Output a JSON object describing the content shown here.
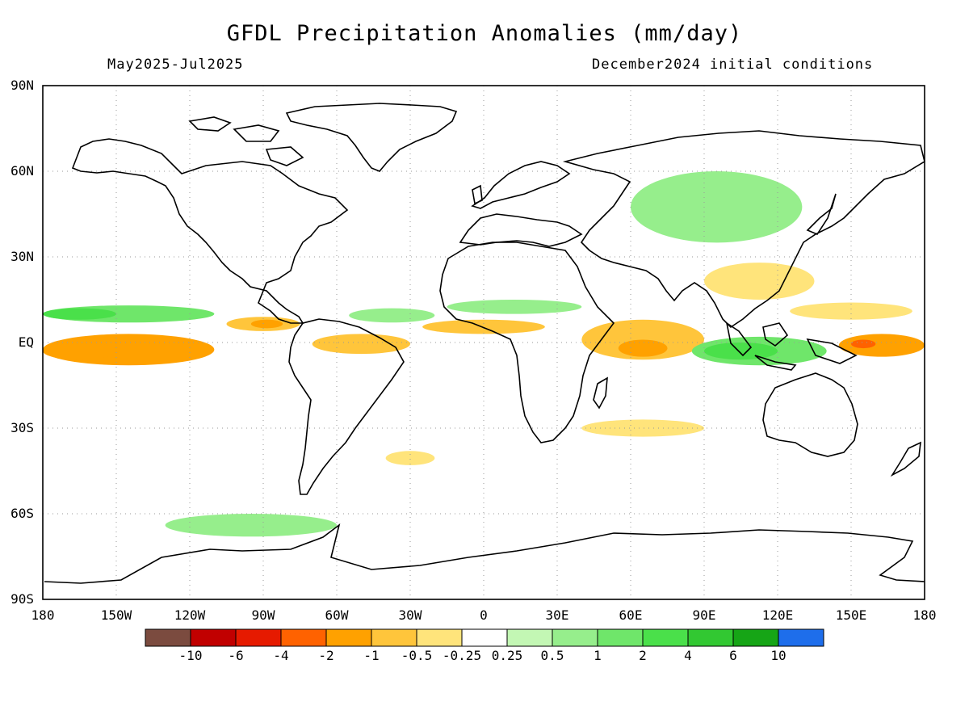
{
  "header": {
    "title": "GFDL Precipitation Anomalies (mm/day)",
    "period": "May2025-Jul2025",
    "init": "December2024 initial conditions"
  },
  "axes": {
    "lat_labels": [
      "90N",
      "60N",
      "30N",
      "EQ",
      "30S",
      "60S",
      "90S"
    ],
    "lon_labels": [
      "180",
      "150W",
      "120W",
      "90W",
      "60W",
      "30W",
      "0",
      "30E",
      "60E",
      "90E",
      "120E",
      "150E",
      "180"
    ]
  },
  "colorbar": {
    "colors": [
      "#7b4b3f",
      "#c10000",
      "#e61a00",
      "#ff6200",
      "#ffa100",
      "#ffc53b",
      "#ffe47b",
      "#ffffff",
      "#c3f7b4",
      "#96ee8c",
      "#6fe66a",
      "#4ae04a",
      "#32c832",
      "#16a516",
      "#1e6eeb"
    ],
    "labels": [
      "-10",
      "-6",
      "-4",
      "-2",
      "-1",
      "-0.5",
      "-0.25",
      "0.25",
      "0.5",
      "1",
      "2",
      "4",
      "6",
      "10"
    ]
  },
  "chart_data": {
    "type": "heatmap",
    "title": "GFDL Precipitation Anomalies (mm/day)",
    "subtitle_left": "May2025-Jul2025",
    "subtitle_right": "December2024 initial conditions",
    "xlim": [
      -180,
      180
    ],
    "ylim": [
      -90,
      90
    ],
    "grid": true,
    "units": "mm/day",
    "anomaly_regions": [
      {
        "lon": [
          -180,
          -110
        ],
        "lat": [
          -8,
          3
        ],
        "value": -1.5
      },
      {
        "lon": [
          -180,
          -150
        ],
        "lat": [
          -6,
          0
        ],
        "value": -2
      },
      {
        "lon": [
          -180,
          -110
        ],
        "lat": [
          7,
          13
        ],
        "value": 1
      },
      {
        "lon": [
          -180,
          -150
        ],
        "lat": [
          8,
          12
        ],
        "value": 2
      },
      {
        "lon": [
          -105,
          -75
        ],
        "lat": [
          4,
          9
        ],
        "value": -1
      },
      {
        "lon": [
          -95,
          -82
        ],
        "lat": [
          5,
          8
        ],
        "value": -2
      },
      {
        "lon": [
          -70,
          -30
        ],
        "lat": [
          -4,
          3
        ],
        "value": -1
      },
      {
        "lon": [
          -55,
          -20
        ],
        "lat": [
          7,
          12
        ],
        "value": 0.5
      },
      {
        "lon": [
          -25,
          25
        ],
        "lat": [
          3,
          8
        ],
        "value": -1
      },
      {
        "lon": [
          -15,
          40
        ],
        "lat": [
          10,
          15
        ],
        "value": 0.5
      },
      {
        "lon": [
          40,
          90
        ],
        "lat": [
          -6,
          8
        ],
        "value": -1
      },
      {
        "lon": [
          55,
          75
        ],
        "lat": [
          -5,
          1
        ],
        "value": -1.5
      },
      {
        "lon": [
          85,
          140
        ],
        "lat": [
          -8,
          2
        ],
        "value": 1
      },
      {
        "lon": [
          90,
          120
        ],
        "lat": [
          -6,
          0
        ],
        "value": 2
      },
      {
        "lon": [
          145,
          180
        ],
        "lat": [
          -5,
          3
        ],
        "value": -2
      },
      {
        "lon": [
          150,
          160
        ],
        "lat": [
          -2,
          1
        ],
        "value": -4
      },
      {
        "lon": [
          125,
          175
        ],
        "lat": [
          8,
          14
        ],
        "value": -0.5
      },
      {
        "lon": [
          -130,
          -60
        ],
        "lat": [
          -68,
          -60
        ],
        "value": 0.5
      },
      {
        "lon": [
          60,
          130
        ],
        "lat": [
          35,
          60
        ],
        "value": 0.5
      },
      {
        "lon": [
          90,
          135
        ],
        "lat": [
          15,
          28
        ],
        "value": -0.5
      },
      {
        "lon": [
          40,
          90
        ],
        "lat": [
          -33,
          -27
        ],
        "value": -0.5
      },
      {
        "lon": [
          -40,
          -20
        ],
        "lat": [
          -43,
          -38
        ],
        "value": -0.5
      }
    ]
  }
}
